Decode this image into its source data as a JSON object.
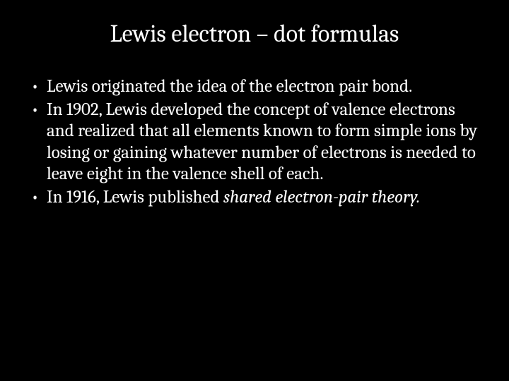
{
  "slide": {
    "title": "Lewis electron – dot formulas",
    "title_fontsize": 34,
    "title_color": "#ffffff",
    "background_color": "#000000",
    "body_fontsize": 25,
    "body_color": "#ffffff",
    "line_height": 1.22,
    "bullets": [
      {
        "text": "Lewis originated the idea of the electron pair bond."
      },
      {
        "text": "In 1902, Lewis developed the concept of valence electrons and realized that all elements known to form simple ions by losing or gaining whatever number of electrons is needed to leave eight in the valence shell of each."
      },
      {
        "text_prefix": "In 1916, Lewis published ",
        "text_italic": "shared electron-pair theory.",
        "has_italic": true
      }
    ]
  }
}
